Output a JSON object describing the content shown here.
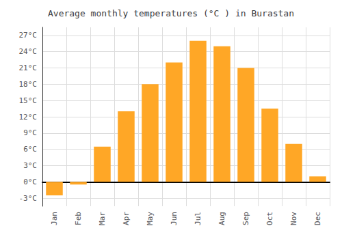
{
  "chart_data": {
    "type": "bar",
    "title": "Average monthly temperatures (°C ) in Burastan",
    "categories": [
      "Jan",
      "Feb",
      "Mar",
      "Apr",
      "May",
      "Jun",
      "Jul",
      "Aug",
      "Sep",
      "Oct",
      "Nov",
      "Dec"
    ],
    "values": [
      -2.5,
      -0.5,
      6.5,
      13.0,
      18.0,
      22.0,
      26.0,
      25.0,
      21.0,
      13.5,
      7.0,
      1.0
    ],
    "color": "#FFA726",
    "ylim": [
      -4.5,
      28.5
    ],
    "yticks": [
      {
        "value": -3,
        "label": "-3°C"
      },
      {
        "value": 0,
        "label": "0°C"
      },
      {
        "value": 3,
        "label": "3°C"
      },
      {
        "value": 6,
        "label": "6°C"
      },
      {
        "value": 9,
        "label": "9°C"
      },
      {
        "value": 12,
        "label": "12°C"
      },
      {
        "value": 15,
        "label": "15°C"
      },
      {
        "value": 18,
        "label": "18°C"
      },
      {
        "value": 21,
        "label": "21°C"
      },
      {
        "value": 24,
        "label": "24°C"
      },
      {
        "value": 27,
        "label": "27°C"
      }
    ],
    "grid": true
  }
}
